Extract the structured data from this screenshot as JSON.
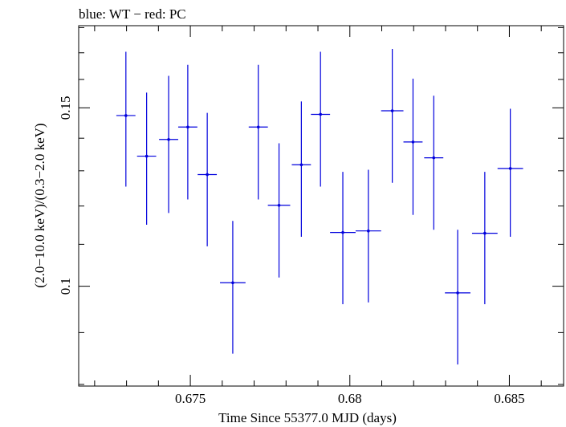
{
  "chart_data": {
    "type": "scatter",
    "title": "blue: WT − red: PC",
    "xlabel": "Time Since 55377.0 MJD (days)",
    "ylabel": "(2.0−10.0 keV)/(0.3−2.0 keV)",
    "xlim": [
      0.6715,
      0.6867
    ],
    "ylim": [
      0.0797,
      0.1808
    ],
    "x_ticks": [
      {
        "value": 0.675,
        "label": "0.675"
      },
      {
        "value": 0.68,
        "label": "0.68"
      },
      {
        "value": 0.685,
        "label": "0.685"
      }
    ],
    "y_ticks": [
      {
        "value": 0.1,
        "label": "0.1"
      },
      {
        "value": 0.15,
        "label": "0.15"
      }
    ],
    "grid": false,
    "series": [
      {
        "color": "#0000dd",
        "points": [
          {
            "x": 0.67298,
            "xerr": 0.0003,
            "y": 0.1474,
            "ylo": 0.1254,
            "yhi": 0.1704
          },
          {
            "x": 0.67363,
            "xerr": 0.0003,
            "y": 0.1344,
            "ylo": 0.115,
            "yhi": 0.1553
          },
          {
            "x": 0.67432,
            "xerr": 0.0003,
            "y": 0.1396,
            "ylo": 0.1181,
            "yhi": 0.1613
          },
          {
            "x": 0.67492,
            "xerr": 0.0003,
            "y": 0.1436,
            "ylo": 0.1218,
            "yhi": 0.1654
          },
          {
            "x": 0.67553,
            "xerr": 0.0003,
            "y": 0.1289,
            "ylo": 0.1095,
            "yhi": 0.1483
          },
          {
            "x": 0.67633,
            "xerr": 0.0004,
            "y": 0.1008,
            "ylo": 0.0858,
            "yhi": 0.116
          },
          {
            "x": 0.67713,
            "xerr": 0.0003,
            "y": 0.1436,
            "ylo": 0.1218,
            "yhi": 0.1654
          },
          {
            "x": 0.67778,
            "xerr": 0.00035,
            "y": 0.1202,
            "ylo": 0.102,
            "yhi": 0.1384
          },
          {
            "x": 0.67848,
            "xerr": 0.0003,
            "y": 0.1318,
            "ylo": 0.1119,
            "yhi": 0.1522
          },
          {
            "x": 0.67908,
            "xerr": 0.0003,
            "y": 0.1478,
            "ylo": 0.1254,
            "yhi": 0.1704
          },
          {
            "x": 0.67978,
            "xerr": 0.0004,
            "y": 0.113,
            "ylo": 0.096,
            "yhi": 0.1297
          },
          {
            "x": 0.68058,
            "xerr": 0.0004,
            "y": 0.1134,
            "ylo": 0.0964,
            "yhi": 0.1303
          },
          {
            "x": 0.68133,
            "xerr": 0.00035,
            "y": 0.149,
            "ylo": 0.1265,
            "yhi": 0.1715
          },
          {
            "x": 0.68198,
            "xerr": 0.0003,
            "y": 0.1388,
            "ylo": 0.1176,
            "yhi": 0.1603
          },
          {
            "x": 0.68263,
            "xerr": 0.0003,
            "y": 0.1339,
            "ylo": 0.1137,
            "yhi": 0.1542
          },
          {
            "x": 0.68338,
            "xerr": 0.0004,
            "y": 0.0985,
            "ylo": 0.0837,
            "yhi": 0.1137
          },
          {
            "x": 0.68423,
            "xerr": 0.0004,
            "y": 0.1128,
            "ylo": 0.096,
            "yhi": 0.1297
          },
          {
            "x": 0.68503,
            "xerr": 0.0004,
            "y": 0.1307,
            "ylo": 0.1119,
            "yhi": 0.1497
          }
        ]
      }
    ]
  }
}
